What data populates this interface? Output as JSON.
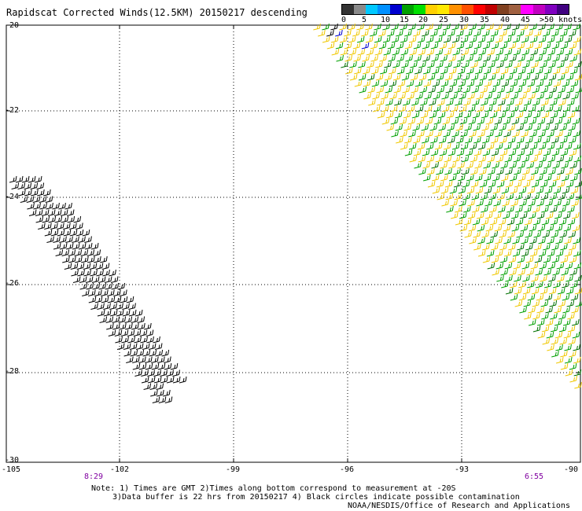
{
  "title": "Rapidscat Corrected Winds(12.5KM) 20150217 descending",
  "legend": {
    "colors": [
      "#333333",
      "#8a8a8a",
      "#00c8ff",
      "#0090ff",
      "#0000d0",
      "#00a000",
      "#00e000",
      "#ffd000",
      "#ffe800",
      "#ff9000",
      "#ff5000",
      "#ff0000",
      "#c00000",
      "#804020",
      "#a06040",
      "#ff00ff",
      "#c000c0",
      "#8000c0",
      "#400080"
    ],
    "labels": [
      "0",
      "5",
      "10",
      "15",
      "20",
      "25",
      "30",
      "35",
      "40",
      "45",
      ">50 knots"
    ]
  },
  "y_axis_labels": [
    "-20",
    "-22",
    "-24",
    "-26",
    "-28",
    "-30"
  ],
  "x_axis_labels": [
    "-105",
    "-102",
    "-99",
    "-96",
    "-93",
    "-90"
  ],
  "time_labels": {
    "start": "8:29",
    "end": "6:55"
  },
  "notes": {
    "line1": "Note: 1) Times are GMT 2)Times along bottom correspond to measurement at -20S",
    "line2": "3)Data buffer is 22 hrs from 20150217 4) Black circles indicate possible contamination",
    "credit": "NOAA/NESDIS/Office of Research and Applications"
  }
}
